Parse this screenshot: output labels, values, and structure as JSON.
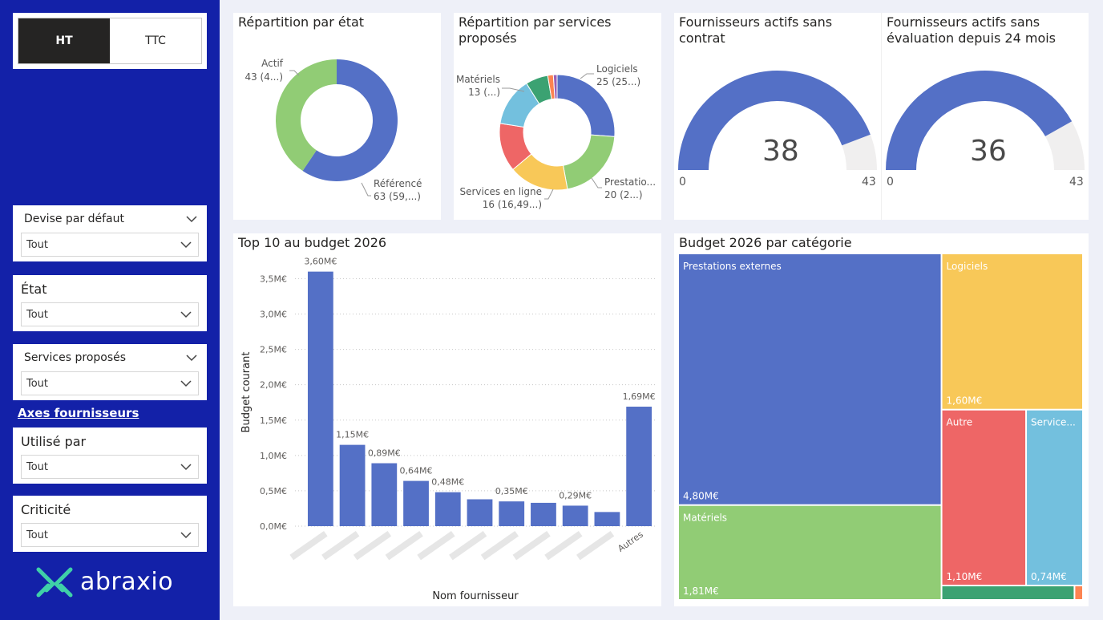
{
  "toggle": {
    "ht_label": "HT",
    "ttc_label": "TTC"
  },
  "slicers": {
    "devise": {
      "title": "Devise par défaut",
      "value": "Tout"
    },
    "etat": {
      "title": "État",
      "value": "Tout"
    },
    "services": {
      "title": "Services proposés",
      "value": "Tout"
    },
    "utilise": {
      "title": "Utilisé par",
      "value": "Tout"
    },
    "criticite": {
      "title": "Criticité",
      "value": "Tout"
    }
  },
  "axes_link": "Axes fournisseurs",
  "logo": {
    "text": "abraxio"
  },
  "colors": {
    "blue": "#5470c6",
    "green": "#91cc75",
    "yellow": "#f8c858",
    "red": "#ee6666",
    "lightblue": "#73c0de",
    "teal": "#3ba272",
    "orange": "#fc8452",
    "purple": "#9a60b4",
    "sidebar": "#1321a8"
  },
  "cards": {
    "etat": {
      "title": "Répartition par état"
    },
    "services": {
      "title_line1": "Répartition par services",
      "title_line2": "proposés"
    },
    "gauge1": {
      "title_line1": "Fournisseurs actifs sans",
      "title_line2": "contrat"
    },
    "gauge2": {
      "title_line1": "Fournisseurs actifs sans",
      "title_line2": "évaluation depuis 24 mois"
    },
    "top10": {
      "title": "Top 10 au budget 2026"
    },
    "treemap": {
      "title": "Budget 2026 par catégorie"
    }
  },
  "chart_data": [
    {
      "type": "pie",
      "subtype": "donut",
      "title": "Répartition par état",
      "slices": [
        {
          "name": "Référencé",
          "value": 63,
          "label": "63 (59,...)",
          "color": "#5470c6"
        },
        {
          "name": "Actif",
          "value": 43,
          "label": "43 (4...)",
          "color": "#91cc75"
        }
      ]
    },
    {
      "type": "pie",
      "subtype": "donut",
      "title": "Répartition par services proposés",
      "slices": [
        {
          "name": "Logiciels",
          "value": 25,
          "label": "25 (25...)",
          "color": "#5470c6"
        },
        {
          "name": "Prestatio...",
          "value": 20,
          "label": "20 (2...)",
          "color": "#91cc75"
        },
        {
          "name": "Services en ligne",
          "value": 16,
          "label": "16 (16,49...)",
          "color": "#f8c858"
        },
        {
          "name": "",
          "value": 13,
          "label": "",
          "color": "#ee6666"
        },
        {
          "name": "Matériels",
          "value": 13,
          "label": "13 (...)",
          "color": "#73c0de"
        },
        {
          "name": "",
          "value": 6,
          "label": "",
          "color": "#3ba272"
        },
        {
          "name": "",
          "value": 1.5,
          "label": "",
          "color": "#fc8452"
        },
        {
          "name": "",
          "value": 1,
          "label": "",
          "color": "#9a60b4"
        }
      ]
    },
    {
      "type": "gauge",
      "title": "Fournisseurs actifs sans contrat",
      "value": 38,
      "min": 0,
      "max": 43,
      "value_label": "38",
      "min_label": "0",
      "max_label": "43"
    },
    {
      "type": "gauge",
      "title": "Fournisseurs actifs sans évaluation depuis 24 mois",
      "value": 36,
      "min": 0,
      "max": 43,
      "value_label": "36",
      "min_label": "0",
      "max_label": "43"
    },
    {
      "type": "bar",
      "title": "Top 10 au budget 2026",
      "xlabel": "Nom fournisseur",
      "ylabel": "Budget courant",
      "ylim": [
        0,
        3.8
      ],
      "yticks": [
        0,
        0.5,
        1.0,
        1.5,
        2.0,
        2.5,
        3.0,
        3.5
      ],
      "ytick_labels": [
        "0,0M€",
        "0,5M€",
        "1,0M€",
        "1,5M€",
        "2,0M€",
        "2,5M€",
        "3,0M€",
        "3,5M€"
      ],
      "categories": [
        "",
        "",
        "",
        "",
        "",
        "",
        "",
        "",
        "",
        "",
        "Autres"
      ],
      "values": [
        3.6,
        1.15,
        0.89,
        0.64,
        0.48,
        0.38,
        0.35,
        0.33,
        0.29,
        0.2,
        1.69
      ],
      "data_labels": [
        "3,60M€",
        "1,15M€",
        "0,89M€",
        "0,64M€",
        "0,48M€",
        "",
        "0,35M€",
        "",
        "0,29M€",
        "",
        "1,69M€"
      ],
      "grid": true
    },
    {
      "type": "treemap",
      "title": "Budget 2026 par catégorie",
      "items": [
        {
          "name": "Prestations externes",
          "value": 4.8,
          "label": "4,80M€",
          "color": "#5470c6"
        },
        {
          "name": "Matériels",
          "value": 1.81,
          "label": "1,81M€",
          "color": "#91cc75"
        },
        {
          "name": "Logiciels",
          "value": 1.6,
          "label": "1,60M€",
          "color": "#f8c858"
        },
        {
          "name": "Autre",
          "value": 1.1,
          "label": "1,10M€",
          "color": "#ee6666"
        },
        {
          "name": "Service...",
          "value": 0.74,
          "label": "0,74M€",
          "color": "#73c0de"
        },
        {
          "name": "",
          "value": 0.1,
          "label": "",
          "color": "#3ba272"
        },
        {
          "name": "",
          "value": 0.01,
          "label": "",
          "color": "#fc8452"
        }
      ]
    }
  ]
}
